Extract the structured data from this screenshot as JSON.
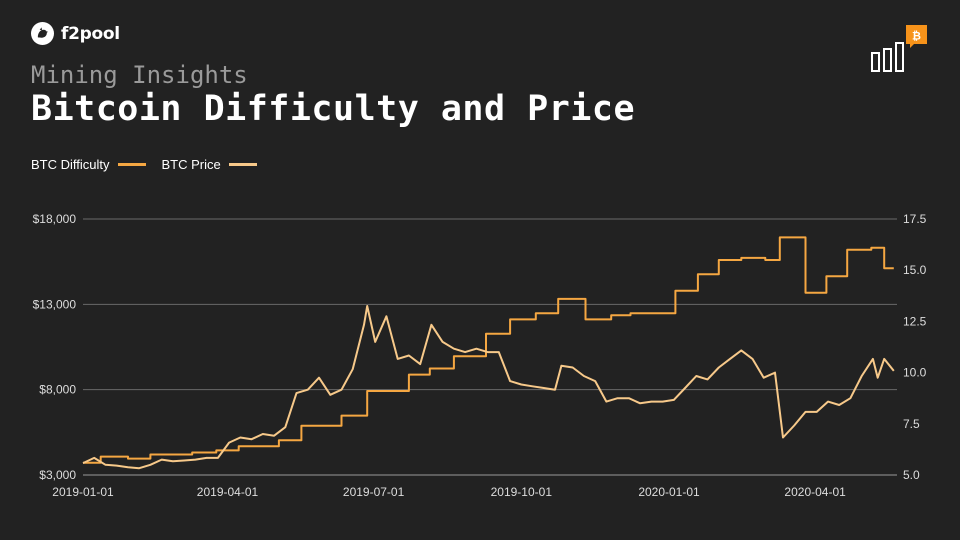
{
  "brand": {
    "name": "f2pool"
  },
  "header": {
    "subtitle": "Mining Insights",
    "title": "Bitcoin Difficulty and Price"
  },
  "icons": {
    "logo": "f2pool-bird-logo",
    "corner": "bitcoin-chart-icon"
  },
  "colors": {
    "background": "#222222",
    "difficulty": "#f5a742",
    "price": "#f7c98a",
    "grid": "#6a6a6a",
    "bitcoin": "#f7931a"
  },
  "chart_data": {
    "type": "line",
    "title": "Bitcoin Difficulty and Price",
    "legend_position": "top-left",
    "grid": true,
    "x_ticks": [
      "2019-01-01",
      "2019-04-01",
      "2019-07-01",
      "2019-10-01",
      "2020-01-01",
      "2020-04-01"
    ],
    "y_left": {
      "range": [
        3000,
        18000
      ],
      "ticks": [
        "$3,000",
        "$8,000",
        "$13,000",
        "$18,000"
      ],
      "tick_values": [
        3000,
        8000,
        13000,
        18000
      ]
    },
    "y_right": {
      "range": [
        5.0,
        17.5
      ],
      "ticks": [
        "5.0",
        "7.5",
        "10.0",
        "12.5",
        "15.0",
        "17.5"
      ],
      "tick_values": [
        5.0,
        7.5,
        10.0,
        12.5,
        15.0,
        17.5
      ]
    },
    "series": [
      {
        "name": "BTC Difficulty",
        "axis": "right",
        "color": "#f5a742",
        "step": true,
        "points": [
          [
            "2019-01-01",
            5.6
          ],
          [
            "2019-01-12",
            5.9
          ],
          [
            "2019-01-29",
            5.8
          ],
          [
            "2019-02-12",
            6.0
          ],
          [
            "2019-03-10",
            6.1
          ],
          [
            "2019-03-25",
            6.2
          ],
          [
            "2019-04-08",
            6.4
          ],
          [
            "2019-05-03",
            6.7
          ],
          [
            "2019-05-17",
            7.4
          ],
          [
            "2019-06-11",
            7.9
          ],
          [
            "2019-06-27",
            9.1
          ],
          [
            "2019-07-23",
            9.9
          ],
          [
            "2019-08-05",
            10.2
          ],
          [
            "2019-08-20",
            10.8
          ],
          [
            "2019-09-09",
            11.9
          ],
          [
            "2019-09-24",
            12.6
          ],
          [
            "2019-10-10",
            12.9
          ],
          [
            "2019-10-24",
            13.6
          ],
          [
            "2019-11-10",
            12.6
          ],
          [
            "2019-11-26",
            12.8
          ],
          [
            "2019-12-08",
            12.9
          ],
          [
            "2019-12-22",
            12.9
          ],
          [
            "2020-01-05",
            14.0
          ],
          [
            "2020-01-19",
            14.8
          ],
          [
            "2020-02-01",
            15.5
          ],
          [
            "2020-02-15",
            15.6
          ],
          [
            "2020-03-01",
            15.5
          ],
          [
            "2020-03-10",
            16.6
          ],
          [
            "2020-03-26",
            13.9
          ],
          [
            "2020-04-08",
            14.7
          ],
          [
            "2020-04-21",
            16.0
          ],
          [
            "2020-05-06",
            16.1
          ],
          [
            "2020-05-14",
            15.1
          ],
          [
            "2020-05-20",
            15.1
          ]
        ]
      },
      {
        "name": "BTC Price",
        "axis": "left",
        "color": "#f7c98a",
        "points": [
          [
            "2019-01-01",
            3700
          ],
          [
            "2019-01-08",
            4000
          ],
          [
            "2019-01-15",
            3600
          ],
          [
            "2019-01-22",
            3550
          ],
          [
            "2019-01-29",
            3450
          ],
          [
            "2019-02-05",
            3400
          ],
          [
            "2019-02-12",
            3600
          ],
          [
            "2019-02-19",
            3900
          ],
          [
            "2019-02-26",
            3800
          ],
          [
            "2019-03-05",
            3850
          ],
          [
            "2019-03-12",
            3900
          ],
          [
            "2019-03-19",
            4000
          ],
          [
            "2019-03-26",
            4000
          ],
          [
            "2019-04-02",
            4900
          ],
          [
            "2019-04-09",
            5200
          ],
          [
            "2019-04-16",
            5100
          ],
          [
            "2019-04-23",
            5400
          ],
          [
            "2019-04-30",
            5300
          ],
          [
            "2019-05-07",
            5800
          ],
          [
            "2019-05-14",
            7800
          ],
          [
            "2019-05-21",
            8000
          ],
          [
            "2019-05-28",
            8700
          ],
          [
            "2019-06-04",
            7700
          ],
          [
            "2019-06-11",
            8000
          ],
          [
            "2019-06-18",
            9200
          ],
          [
            "2019-06-25",
            11800
          ],
          [
            "2019-06-27",
            12900
          ],
          [
            "2019-07-02",
            10800
          ],
          [
            "2019-07-09",
            12300
          ],
          [
            "2019-07-16",
            9800
          ],
          [
            "2019-07-23",
            10000
          ],
          [
            "2019-07-30",
            9500
          ],
          [
            "2019-08-06",
            11800
          ],
          [
            "2019-08-13",
            10800
          ],
          [
            "2019-08-20",
            10400
          ],
          [
            "2019-08-27",
            10200
          ],
          [
            "2019-09-03",
            10400
          ],
          [
            "2019-09-10",
            10200
          ],
          [
            "2019-09-17",
            10200
          ],
          [
            "2019-09-24",
            8500
          ],
          [
            "2019-10-01",
            8300
          ],
          [
            "2019-10-08",
            8200
          ],
          [
            "2019-10-15",
            8100
          ],
          [
            "2019-10-22",
            8000
          ],
          [
            "2019-10-26",
            9400
          ],
          [
            "2019-11-02",
            9300
          ],
          [
            "2019-11-09",
            8800
          ],
          [
            "2019-11-16",
            8500
          ],
          [
            "2019-11-23",
            7300
          ],
          [
            "2019-11-30",
            7500
          ],
          [
            "2019-12-07",
            7500
          ],
          [
            "2019-12-14",
            7200
          ],
          [
            "2019-12-21",
            7300
          ],
          [
            "2019-12-28",
            7300
          ],
          [
            "2020-01-04",
            7400
          ],
          [
            "2020-01-11",
            8100
          ],
          [
            "2020-01-18",
            8800
          ],
          [
            "2020-01-25",
            8600
          ],
          [
            "2020-02-01",
            9300
          ],
          [
            "2020-02-08",
            9800
          ],
          [
            "2020-02-15",
            10300
          ],
          [
            "2020-02-22",
            9800
          ],
          [
            "2020-02-29",
            8700
          ],
          [
            "2020-03-07",
            9000
          ],
          [
            "2020-03-12",
            5200
          ],
          [
            "2020-03-19",
            5900
          ],
          [
            "2020-03-26",
            6700
          ],
          [
            "2020-04-02",
            6700
          ],
          [
            "2020-04-09",
            7300
          ],
          [
            "2020-04-16",
            7100
          ],
          [
            "2020-04-23",
            7500
          ],
          [
            "2020-04-30",
            8800
          ],
          [
            "2020-05-07",
            9800
          ],
          [
            "2020-05-10",
            8700
          ],
          [
            "2020-05-14",
            9800
          ],
          [
            "2020-05-20",
            9100
          ]
        ]
      }
    ]
  }
}
